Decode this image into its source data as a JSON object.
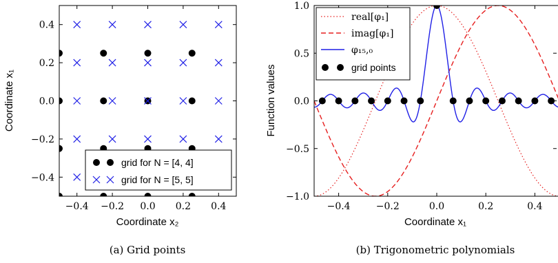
{
  "chart_data": [
    {
      "type": "scatter",
      "caption": "(a)  Grid points",
      "xlabel": "Coordinate x₂",
      "ylabel": "Coordinate x₁",
      "xlim": [
        -0.5,
        0.5
      ],
      "ylim": [
        -0.5,
        0.5
      ],
      "x_ticks": [
        -0.4,
        -0.2,
        0.0,
        0.2,
        0.4
      ],
      "x_tick_labels": [
        "−0.4",
        "−0.2",
        "0.0",
        "0.2",
        "0.4"
      ],
      "y_ticks": [
        -0.4,
        -0.2,
        0.0,
        0.2,
        0.4
      ],
      "y_tick_labels": [
        "−0.4",
        "−0.2",
        "0.0",
        "0.2",
        "0.4"
      ],
      "grid": false,
      "legend_position": "lower-right",
      "series": [
        {
          "name": "grid for N = [4, 4]",
          "marker": "filled-circle",
          "color": "#000000",
          "coords": [
            -0.5,
            -0.25,
            0.0,
            0.25
          ]
        },
        {
          "name": "grid for N = [5, 5]",
          "marker": "x",
          "color": "#1f1fe6",
          "coords": [
            -0.4,
            -0.2,
            0.0,
            0.2,
            0.4
          ]
        }
      ]
    },
    {
      "type": "line",
      "caption": "(b)  Trigonometric polynomials",
      "xlabel": "Coordinate x₁",
      "ylabel": "Function values",
      "xlim": [
        -0.5,
        0.5
      ],
      "ylim": [
        -1.0,
        1.0
      ],
      "x_ticks": [
        -0.4,
        -0.2,
        0.0,
        0.2,
        0.4
      ],
      "x_tick_labels": [
        "−0.4",
        "−0.2",
        "0.0",
        "0.2",
        "0.4"
      ],
      "y_ticks": [
        -1.0,
        -0.5,
        0.0,
        0.5,
        1.0
      ],
      "y_tick_labels": [
        "−1.0",
        "−0.5",
        "0.0",
        "0.5",
        "1.0"
      ],
      "grid": false,
      "legend_position": "top-left",
      "series": [
        {
          "name": "real[φ₁]",
          "style": "dotted",
          "color": "#e61e1e",
          "function": "cos(2πx)"
        },
        {
          "name": "imag[φ₁]",
          "style": "dashed",
          "color": "#e61e1e",
          "function": "sin(2πx)"
        },
        {
          "name": "φ₁₅,₀",
          "style": "solid",
          "color": "#1f1fe6",
          "function": "Dirichlet kernel, N = 15"
        },
        {
          "name": "grid points",
          "style": "markers",
          "color": "#000000",
          "x": [
            -0.4667,
            -0.4,
            -0.3333,
            -0.2667,
            -0.2,
            -0.1333,
            -0.0667,
            0.0,
            0.0667,
            0.1333,
            0.2,
            0.2667,
            0.3333,
            0.4,
            0.4667
          ],
          "y": [
            0,
            0,
            0,
            0,
            0,
            0,
            0,
            1,
            0,
            0,
            0,
            0,
            0,
            0,
            0
          ]
        }
      ]
    }
  ]
}
